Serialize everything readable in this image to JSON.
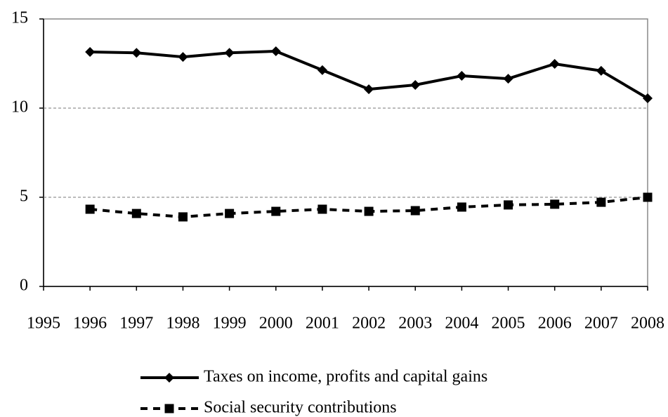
{
  "chart_data": {
    "type": "line",
    "x": [
      1996,
      1997,
      1998,
      1999,
      2000,
      2001,
      2002,
      2003,
      2004,
      2005,
      2006,
      2007,
      2008
    ],
    "series": [
      {
        "name": "Taxes on income, profits and capital gains",
        "color": "#000000",
        "line_style": "solid",
        "marker": "diamond",
        "values": [
          13.15,
          13.1,
          12.87,
          13.1,
          13.19,
          12.13,
          11.06,
          11.3,
          11.81,
          11.65,
          12.48,
          12.09,
          10.55
        ]
      },
      {
        "name": "Social security contributions",
        "color": "#000000",
        "line_style": "dashed",
        "marker": "square",
        "values": [
          4.33,
          4.09,
          3.9,
          4.09,
          4.21,
          4.33,
          4.21,
          4.25,
          4.45,
          4.57,
          4.61,
          4.72,
          5.0
        ]
      }
    ],
    "xlim": [
      1995,
      2008
    ],
    "xticks": [
      1995,
      1996,
      1997,
      1998,
      1999,
      2000,
      2001,
      2002,
      2003,
      2004,
      2005,
      2006,
      2007,
      2008
    ],
    "ylim": [
      0,
      15
    ],
    "yticks": [
      0,
      5,
      10,
      15
    ],
    "grid": true,
    "legend": "bottom"
  }
}
